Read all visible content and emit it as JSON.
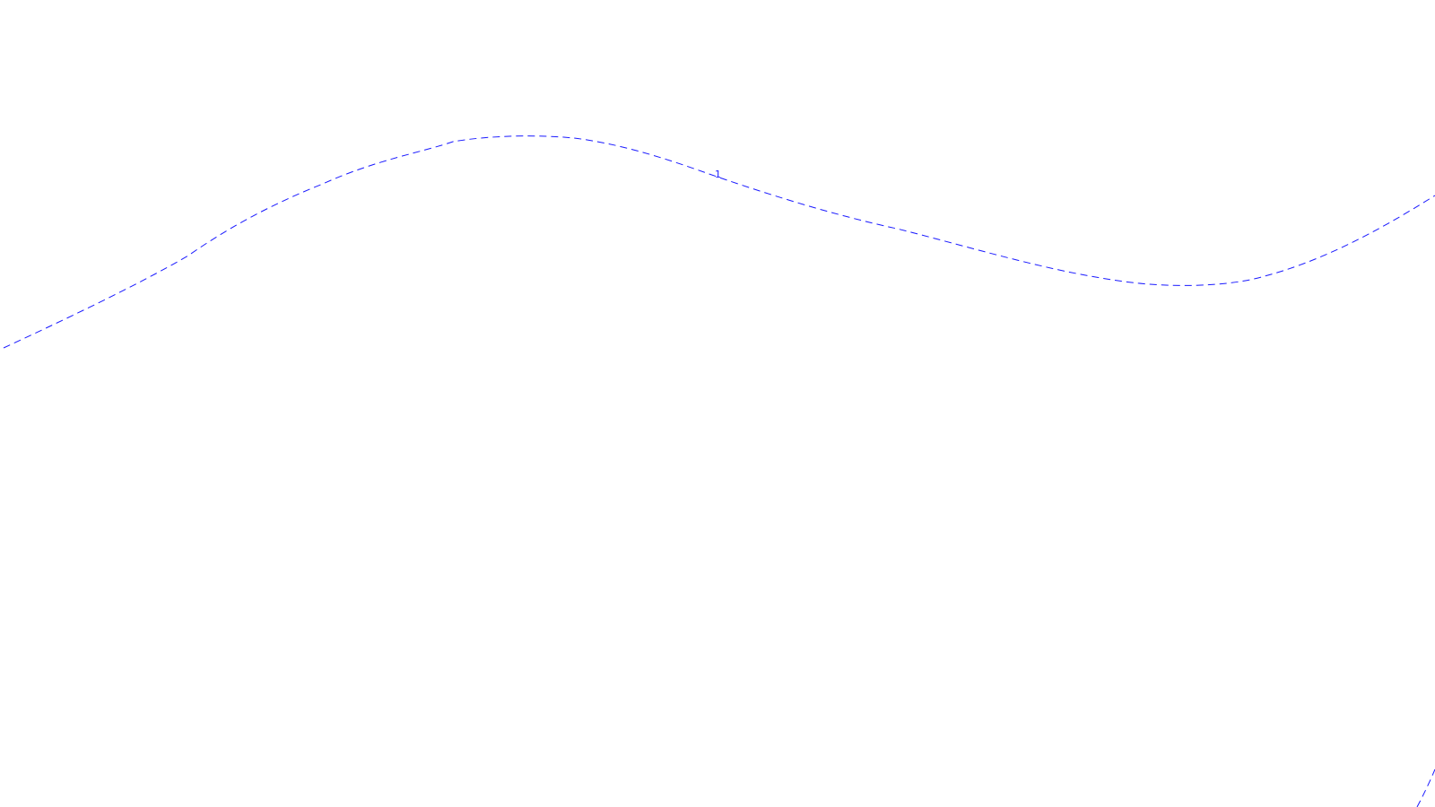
{
  "map": {
    "contour_color": "#1a1aff",
    "contours": [
      {
        "label": "1"
      }
    ]
  }
}
